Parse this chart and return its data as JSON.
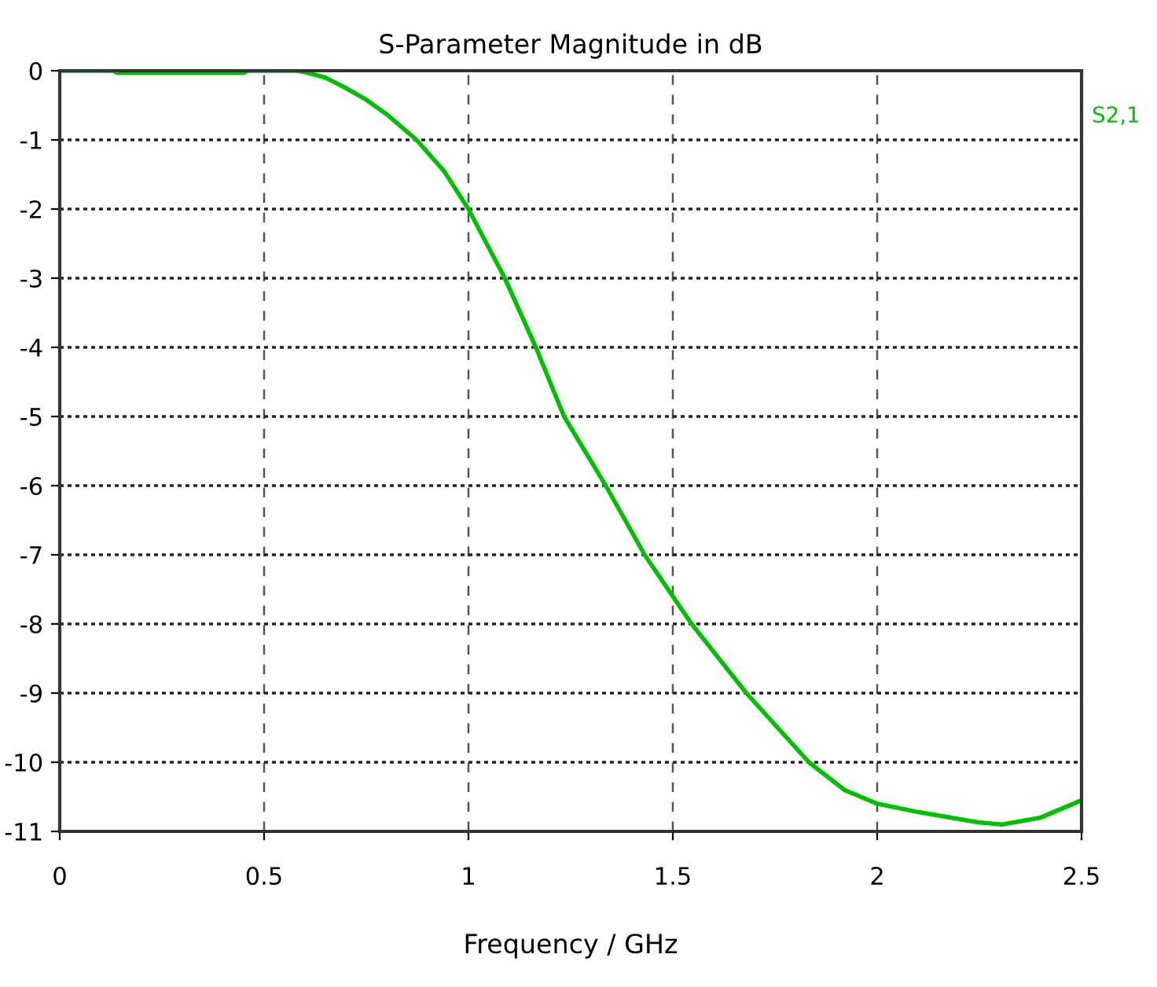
{
  "chart_data": {
    "type": "line",
    "title": "S-Parameter Magnitude in dB",
    "xlabel": "Frequency / GHz",
    "series": [
      {
        "name": "S2,1",
        "color": "#00c000",
        "x": [
          0,
          0.13,
          0.14,
          0.45,
          0.46,
          0.58,
          0.6,
          0.65,
          0.7,
          0.75,
          0.8,
          0.873,
          0.94,
          1.0,
          1.089,
          1.165,
          1.234,
          1.336,
          1.431,
          1.546,
          1.68,
          1.833,
          1.92,
          2.0,
          2.1,
          2.2,
          2.248,
          2.305,
          2.4,
          2.5
        ],
        "values": [
          0,
          0,
          -0.03,
          -0.03,
          0,
          0,
          -0.02,
          -0.1,
          -0.25,
          -0.42,
          -0.63,
          -1,
          -1.45,
          -2,
          -3,
          -4,
          -5,
          -6,
          -7,
          -8,
          -9,
          -10,
          -10.4,
          -10.6,
          -10.72,
          -10.82,
          -10.87,
          -10.9,
          -10.8,
          -10.55
        ]
      }
    ],
    "xlim": [
      0,
      2.5
    ],
    "ylim": [
      -11,
      0
    ],
    "xticks": [
      0,
      0.5,
      1,
      1.5,
      2,
      2.5
    ],
    "yticks": [
      0,
      -1,
      -2,
      -3,
      -4,
      -5,
      -6,
      -7,
      -8,
      -9,
      -10,
      -11
    ],
    "grid": true,
    "legend": "right",
    "line_style": "solid",
    "marker": "none"
  }
}
